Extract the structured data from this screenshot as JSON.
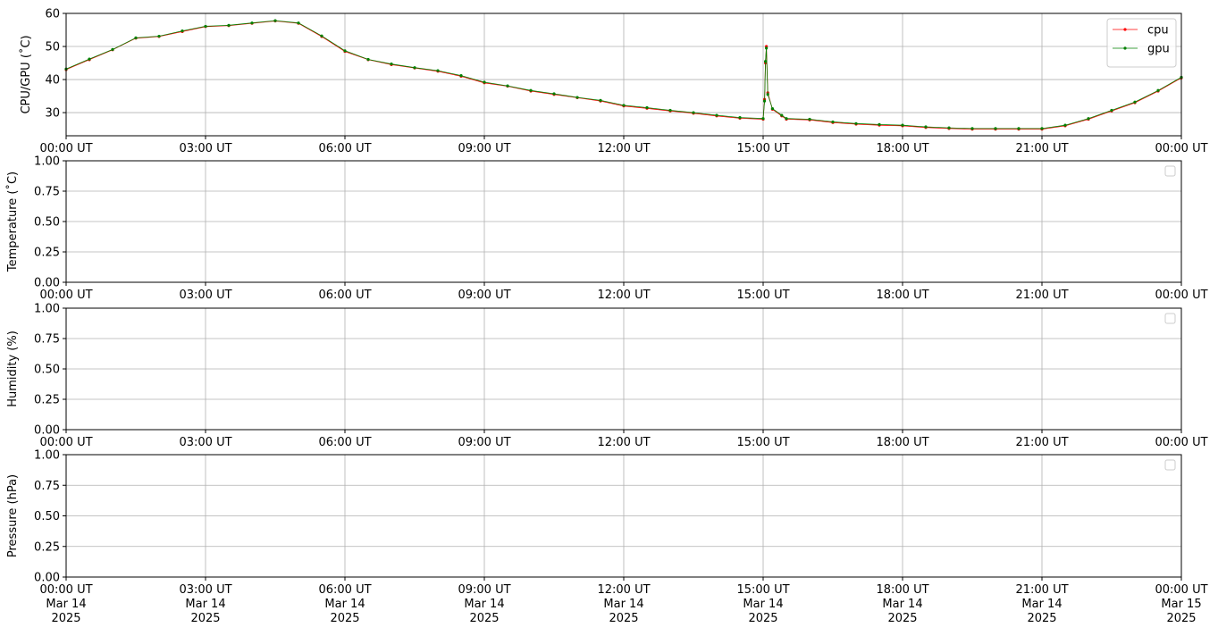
{
  "chart_data": [
    {
      "type": "line",
      "ylabel": "CPU/GPU (˚C)",
      "xlim": [
        0,
        24
      ],
      "ylim": [
        23,
        60
      ],
      "yticks": [
        30,
        40,
        50,
        60
      ],
      "grid": true,
      "legend": "upper right",
      "xticks": [
        {
          "value": 0,
          "label": "00:00 UT"
        },
        {
          "value": 3,
          "label": "03:00 UT"
        },
        {
          "value": 6,
          "label": "06:00 UT"
        },
        {
          "value": 9,
          "label": "09:00 UT"
        },
        {
          "value": 12,
          "label": "12:00 UT"
        },
        {
          "value": 15,
          "label": "15:00 UT"
        },
        {
          "value": 18,
          "label": "18:00 UT"
        },
        {
          "value": 21,
          "label": "21:00 UT"
        },
        {
          "value": 24,
          "label": "00:00 UT"
        }
      ],
      "x": [
        0,
        0.5,
        1,
        1.5,
        2,
        2.5,
        3,
        3.5,
        4,
        4.5,
        5,
        5.5,
        6,
        6.5,
        7,
        7.5,
        8,
        8.5,
        9,
        9.5,
        10,
        10.5,
        11,
        11.5,
        12,
        12.5,
        13,
        13.5,
        14,
        14.5,
        15,
        15.03,
        15.05,
        15.07,
        15.1,
        15.2,
        15.4,
        15.5,
        16,
        16.5,
        17,
        17.5,
        18,
        18.5,
        19,
        19.5,
        20,
        20.5,
        21,
        21.5,
        22,
        22.5,
        23,
        23.5,
        24
      ],
      "series": [
        {
          "name": "cpu",
          "color": "#ff0000",
          "values": [
            43,
            46,
            49,
            52.5,
            53,
            54.5,
            56,
            56.3,
            57,
            57.7,
            57,
            53,
            48.5,
            46,
            44.5,
            43.5,
            42.5,
            41,
            39,
            38,
            36.5,
            35.5,
            34.5,
            33.5,
            32,
            31.3,
            30.5,
            29.8,
            29,
            28.3,
            28,
            34,
            45,
            50,
            36,
            31,
            29,
            28,
            27.8,
            27,
            26.5,
            26.2,
            26,
            25.5,
            25.2,
            25,
            25,
            25,
            25,
            26,
            28,
            30.5,
            33,
            36.5,
            40.5
          ]
        },
        {
          "name": "gpu",
          "color": "#008000",
          "values": [
            43.2,
            46.2,
            49.1,
            52.6,
            53.1,
            54.7,
            56.1,
            56.4,
            57.1,
            57.8,
            57.1,
            53.2,
            48.7,
            46.1,
            44.7,
            43.6,
            42.7,
            41.2,
            39.2,
            38.1,
            36.7,
            35.7,
            34.6,
            33.7,
            32.2,
            31.5,
            30.7,
            30,
            29.2,
            28.5,
            28.2,
            33.5,
            45.5,
            49.5,
            35.5,
            31.2,
            29.2,
            28.2,
            28,
            27.2,
            26.7,
            26.4,
            26.2,
            25.7,
            25.4,
            25.2,
            25.2,
            25.2,
            25.2,
            26.2,
            28.2,
            30.7,
            33.2,
            36.7,
            40.7
          ]
        }
      ]
    },
    {
      "type": "line",
      "ylabel": "Temperature (˚C)",
      "xlim": [
        0,
        24
      ],
      "ylim": [
        0,
        1
      ],
      "yticks": [
        {
          "value": 0,
          "label": "0.00"
        },
        {
          "value": 0.25,
          "label": "0.25"
        },
        {
          "value": 0.5,
          "label": "0.50"
        },
        {
          "value": 0.75,
          "label": "0.75"
        },
        {
          "value": 1,
          "label": "1.00"
        }
      ],
      "grid": true,
      "legend": "upper right",
      "xticks": [
        {
          "value": 0,
          "label": "00:00 UT"
        },
        {
          "value": 3,
          "label": "03:00 UT"
        },
        {
          "value": 6,
          "label": "06:00 UT"
        },
        {
          "value": 9,
          "label": "09:00 UT"
        },
        {
          "value": 12,
          "label": "12:00 UT"
        },
        {
          "value": 15,
          "label": "15:00 UT"
        },
        {
          "value": 18,
          "label": "18:00 UT"
        },
        {
          "value": 21,
          "label": "21:00 UT"
        },
        {
          "value": 24,
          "label": "00:00 UT"
        }
      ],
      "x": [],
      "series": []
    },
    {
      "type": "line",
      "ylabel": "Humidity (%)",
      "xlim": [
        0,
        24
      ],
      "ylim": [
        0,
        1
      ],
      "yticks": [
        {
          "value": 0,
          "label": "0.00"
        },
        {
          "value": 0.25,
          "label": "0.25"
        },
        {
          "value": 0.5,
          "label": "0.50"
        },
        {
          "value": 0.75,
          "label": "0.75"
        },
        {
          "value": 1,
          "label": "1.00"
        }
      ],
      "grid": true,
      "legend": "upper right",
      "xticks": [
        {
          "value": 0,
          "label": "00:00 UT"
        },
        {
          "value": 3,
          "label": "03:00 UT"
        },
        {
          "value": 6,
          "label": "06:00 UT"
        },
        {
          "value": 9,
          "label": "09:00 UT"
        },
        {
          "value": 12,
          "label": "12:00 UT"
        },
        {
          "value": 15,
          "label": "15:00 UT"
        },
        {
          "value": 18,
          "label": "18:00 UT"
        },
        {
          "value": 21,
          "label": "21:00 UT"
        },
        {
          "value": 24,
          "label": "00:00 UT"
        }
      ],
      "x": [],
      "series": []
    },
    {
      "type": "line",
      "ylabel": "Pressure (hPa)",
      "xlim": [
        0,
        24
      ],
      "ylim": [
        0,
        1
      ],
      "yticks": [
        {
          "value": 0,
          "label": "0.00"
        },
        {
          "value": 0.25,
          "label": "0.25"
        },
        {
          "value": 0.5,
          "label": "0.50"
        },
        {
          "value": 0.75,
          "label": "0.75"
        },
        {
          "value": 1,
          "label": "1.00"
        }
      ],
      "grid": true,
      "legend": "upper right",
      "xticks": [
        {
          "value": 0,
          "label": "00:00 UT\nMar 14\n2025"
        },
        {
          "value": 3,
          "label": "03:00 UT\nMar 14\n2025"
        },
        {
          "value": 6,
          "label": "06:00 UT\nMar 14\n2025"
        },
        {
          "value": 9,
          "label": "09:00 UT\nMar 14\n2025"
        },
        {
          "value": 12,
          "label": "12:00 UT\nMar 14\n2025"
        },
        {
          "value": 15,
          "label": "15:00 UT\nMar 14\n2025"
        },
        {
          "value": 18,
          "label": "18:00 UT\nMar 14\n2025"
        },
        {
          "value": 21,
          "label": "21:00 UT\nMar 14\n2025"
        },
        {
          "value": 24,
          "label": "00:00 UT\nMar 15\n2025"
        }
      ],
      "x": [],
      "series": []
    }
  ]
}
